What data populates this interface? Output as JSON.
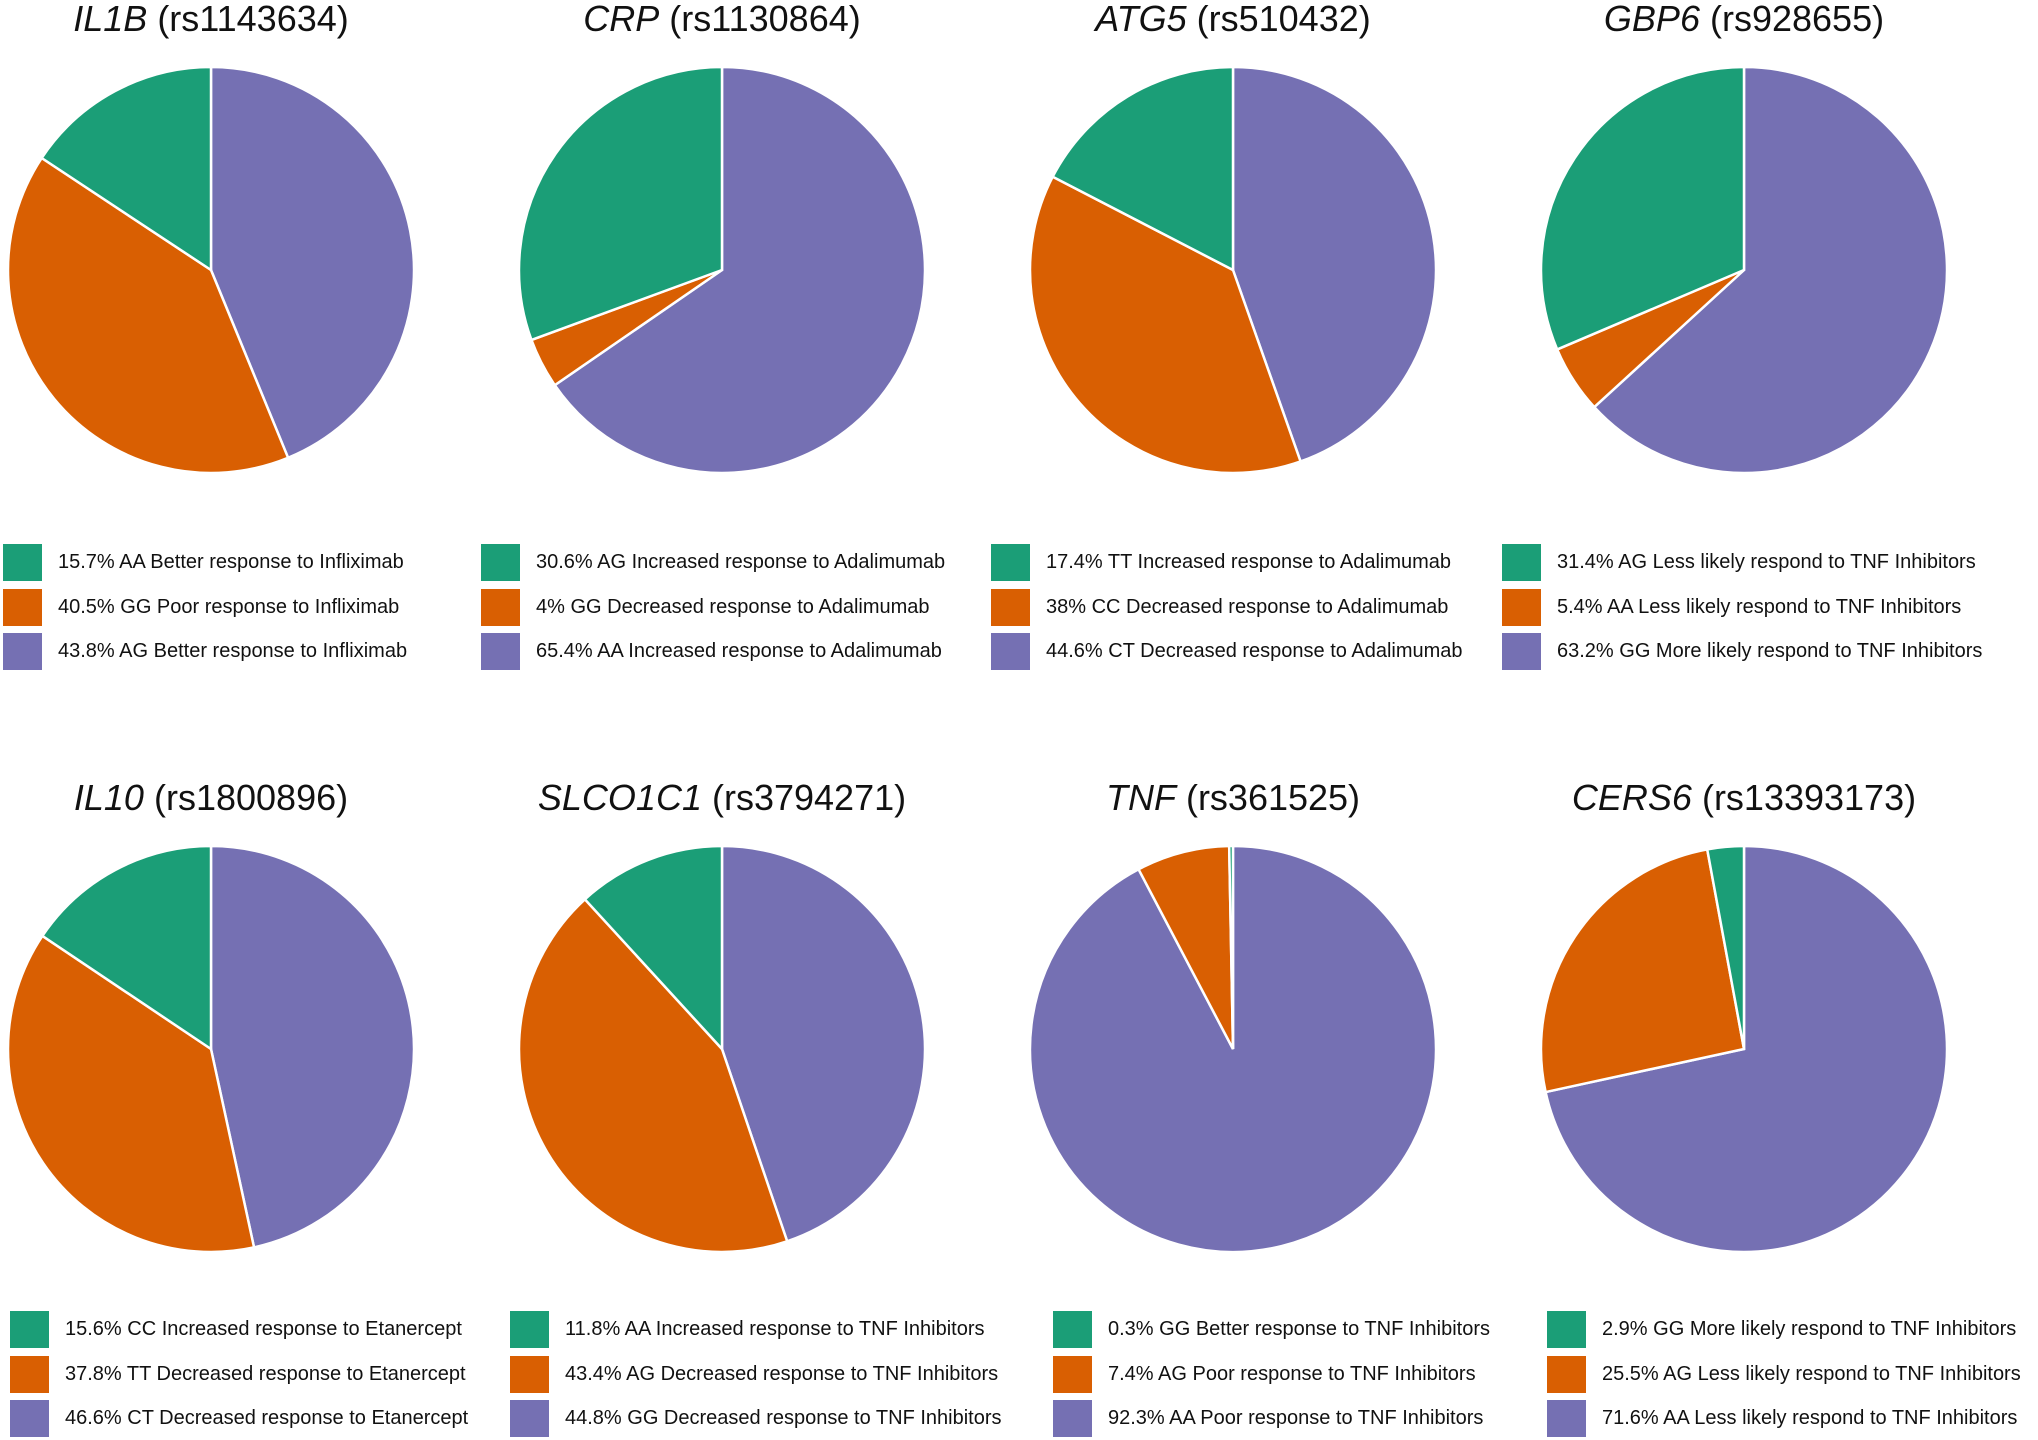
{
  "colors": [
    "#1b9e77",
    "#d95f02",
    "#7570b3"
  ],
  "chart_data": [
    {
      "type": "pie",
      "gene": "IL1B",
      "snp": "(rs1143634)",
      "slices": [
        {
          "value": 15.7,
          "label": "15.7% AA Better response to Infliximab"
        },
        {
          "value": 40.5,
          "label": "40.5% GG Poor response to Infliximab"
        },
        {
          "value": 43.8,
          "label": "43.8% AG Better response to Infliximab"
        }
      ]
    },
    {
      "type": "pie",
      "gene": "CRP",
      "snp": "(rs1130864)",
      "slices": [
        {
          "value": 30.6,
          "label": "30.6% AG Increased response to Adalimumab"
        },
        {
          "value": 4,
          "label": "4% GG Decreased response to Adalimumab"
        },
        {
          "value": 65.4,
          "label": "65.4% AA Increased response to Adalimumab"
        }
      ]
    },
    {
      "type": "pie",
      "gene": "ATG5",
      "snp": "(rs510432)",
      "slices": [
        {
          "value": 17.4,
          "label": "17.4% TT Increased response to Adalimumab"
        },
        {
          "value": 38,
          "label": "38% CC Decreased response to Adalimumab"
        },
        {
          "value": 44.6,
          "label": "44.6% CT Decreased response to Adalimumab"
        }
      ]
    },
    {
      "type": "pie",
      "gene": "GBP6",
      "snp": "(rs928655)",
      "slices": [
        {
          "value": 31.4,
          "label": "31.4% AG Less likely respond to TNF Inhibitors"
        },
        {
          "value": 5.4,
          "label": "5.4% AA Less likely respond to TNF Inhibitors"
        },
        {
          "value": 63.2,
          "label": "63.2% GG More likely respond to TNF Inhibitors"
        }
      ]
    },
    {
      "type": "pie",
      "gene": "IL10",
      "snp": "(rs1800896)",
      "slices": [
        {
          "value": 15.6,
          "label": "15.6% CC Increased response to Etanercept"
        },
        {
          "value": 37.8,
          "label": "37.8% TT Decreased response to Etanercept"
        },
        {
          "value": 46.6,
          "label": "46.6% CT Decreased response to Etanercept"
        }
      ]
    },
    {
      "type": "pie",
      "gene": "SLCO1C1",
      "snp": "(rs3794271)",
      "slices": [
        {
          "value": 11.8,
          "label": "11.8% AA Increased response to TNF Inhibitors"
        },
        {
          "value": 43.4,
          "label": "43.4% AG Decreased response to TNF Inhibitors"
        },
        {
          "value": 44.8,
          "label": "44.8% GG Decreased response to TNF Inhibitors"
        }
      ]
    },
    {
      "type": "pie",
      "gene": "TNF",
      "snp": "(rs361525)",
      "slices": [
        {
          "value": 0.3,
          "label": "0.3% GG Better response to TNF Inhibitors"
        },
        {
          "value": 7.4,
          "label": "7.4% AG Poor response to TNF Inhibitors"
        },
        {
          "value": 92.3,
          "label": "92.3% AA Poor response to TNF Inhibitors"
        }
      ]
    },
    {
      "type": "pie",
      "gene": "CERS6",
      "snp": "(rs13393173)",
      "slices": [
        {
          "value": 2.9,
          "label": "2.9% GG More likely respond to TNF Inhibitors"
        },
        {
          "value": 25.5,
          "label": "25.5% AG Less likely respond to TNF Inhibitors"
        },
        {
          "value": 71.6,
          "label": "71.6% AA Less likely respond to TNF Inhibitors"
        }
      ]
    }
  ]
}
